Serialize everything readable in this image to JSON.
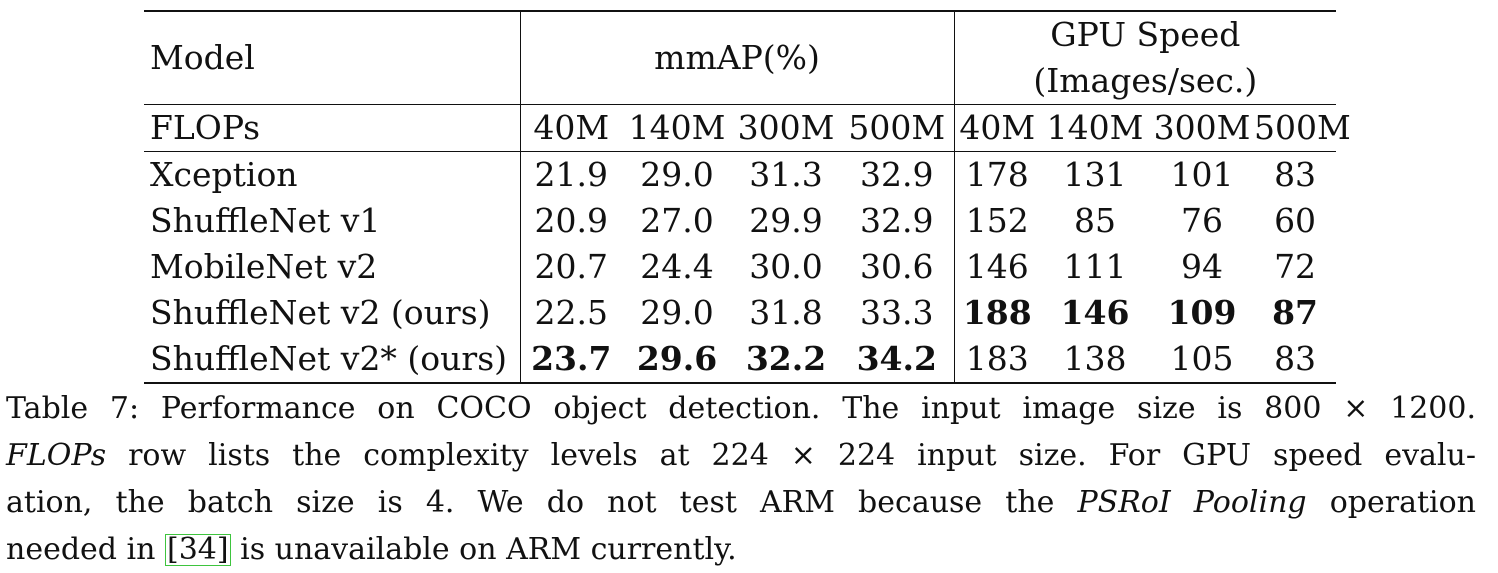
{
  "table": {
    "header": {
      "model": "Model",
      "mmap": "mmAP(%)",
      "gpu_line1": "GPU Speed",
      "gpu_line2": "(Images/sec.)",
      "flops_label": "FLOPs",
      "mmap_flops": [
        "40M",
        "140M",
        "300M",
        "500M"
      ],
      "gpu_flops": [
        "40M",
        "140M",
        "300M",
        "500M"
      ]
    },
    "rows": [
      {
        "model": "Xception",
        "mmap": [
          "21.9",
          "29.0",
          "31.3",
          "32.9"
        ],
        "gpu": [
          "178",
          "131",
          "101",
          "83"
        ]
      },
      {
        "model": "ShuffleNet v1",
        "mmap": [
          "20.9",
          "27.0",
          "29.9",
          "32.9"
        ],
        "gpu": [
          "152",
          "85",
          "76",
          "60"
        ]
      },
      {
        "model": "MobileNet v2",
        "mmap": [
          "20.7",
          "24.4",
          "30.0",
          "30.6"
        ],
        "gpu": [
          "146",
          "111",
          "94",
          "72"
        ]
      },
      {
        "model": "ShuffleNet v2 (ours)",
        "mmap": [
          "22.5",
          "29.0",
          "31.8",
          "33.3"
        ],
        "gpu": [
          "188",
          "146",
          "109",
          "87"
        ]
      },
      {
        "model": "ShuffleNet v2* (ours)",
        "mmap": [
          "23.7",
          "29.6",
          "32.2",
          "34.2"
        ],
        "gpu": [
          "183",
          "138",
          "105",
          "83"
        ]
      }
    ]
  },
  "caption": {
    "l1": "Table 7: Performance on COCO object detection. The input image size is 800 × 1200.",
    "l2_italic": "FLOPs",
    "l2_rest": " row lists the complexity levels at 224 × 224 input size. For GPU speed evalu-",
    "l3_a": "ation, the batch size is 4. We do not test ARM because the ",
    "l3_italic": "PSRoI Pooling",
    "l3_b": " operation",
    "l4_a": "needed in ",
    "l4_cite": "[34]",
    "l4_b": " is unavailable on ARM currently."
  }
}
